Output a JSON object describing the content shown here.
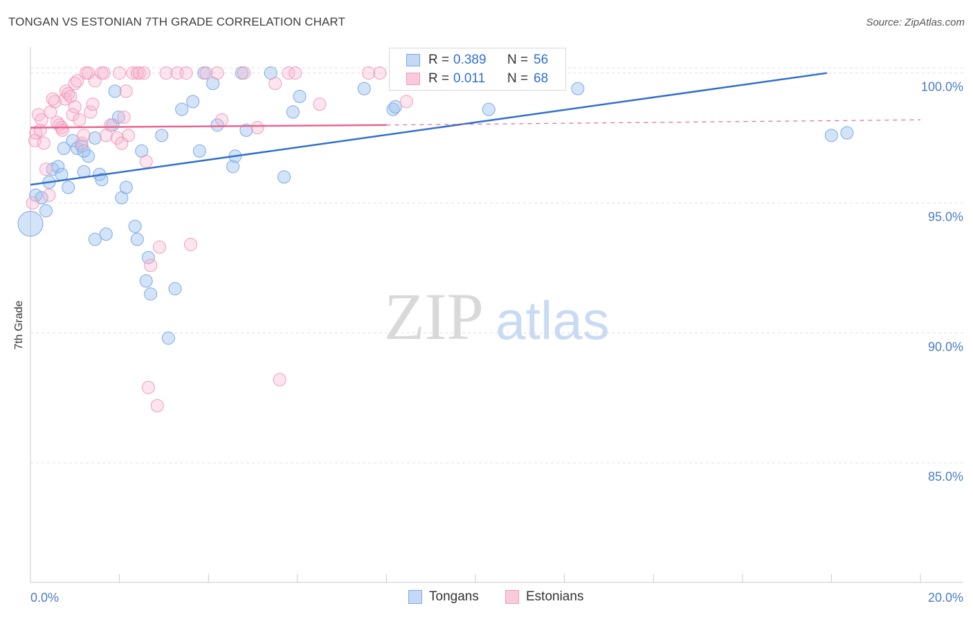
{
  "title": "TONGAN VS ESTONIAN 7TH GRADE CORRELATION CHART",
  "source": "Source: ZipAtlas.com",
  "watermark": {
    "zip": "ZIP",
    "atlas": "atlas"
  },
  "legend": {
    "rows": [
      {
        "r_label": "R =",
        "r_value": "0.389",
        "n_label": "N =",
        "n_value": "56"
      },
      {
        "r_label": "R =",
        "r_value": "0.011",
        "n_label": "N =",
        "n_value": "68"
      }
    ]
  },
  "bottom_legend": {
    "tongans": "Tongans",
    "estonians": "Estonians"
  },
  "chart_data": {
    "type": "scatter",
    "title": "TONGAN VS ESTONIAN 7TH GRADE CORRELATION CHART",
    "xlabel": "",
    "ylabel": "7th Grade",
    "xlim": [
      0.0,
      20.0
    ],
    "ylim": [
      80.4,
      101.0
    ],
    "x_tick_labels": [
      "0.0%",
      "20.0%"
    ],
    "y_ticks": [
      85.0,
      90.0,
      95.0,
      100.0
    ],
    "y_tick_labels": [
      "85.0%",
      "90.0%",
      "95.0%",
      "100.0%"
    ],
    "colors": {
      "tongans": "#7aa8e8",
      "tongans_line": "#2f6fcf",
      "estonians": "#f29ab8",
      "estonians_line": "#e8648f"
    },
    "series": [
      {
        "name": "Tongans",
        "R": 0.389,
        "N": 56,
        "trend": {
          "x0": 0.0,
          "y0": 95.7,
          "x1": 17.9,
          "y1": 100.0
        },
        "points": [
          [
            0.0,
            94.2
          ],
          [
            0.12,
            95.3
          ],
          [
            0.35,
            94.7
          ],
          [
            0.42,
            95.8
          ],
          [
            0.5,
            96.3
          ],
          [
            0.62,
            96.4
          ],
          [
            0.7,
            96.1
          ],
          [
            0.85,
            95.6
          ],
          [
            0.75,
            97.1
          ],
          [
            0.95,
            97.4
          ],
          [
            1.05,
            97.1
          ],
          [
            1.15,
            97.2
          ],
          [
            1.2,
            96.2
          ],
          [
            1.3,
            96.8
          ],
          [
            1.45,
            97.5
          ],
          [
            1.55,
            96.1
          ],
          [
            1.6,
            95.9
          ],
          [
            1.85,
            98.0
          ],
          [
            1.9,
            99.3
          ],
          [
            1.98,
            98.3
          ],
          [
            2.05,
            95.2
          ],
          [
            2.15,
            95.6
          ],
          [
            2.35,
            94.1
          ],
          [
            2.4,
            93.6
          ],
          [
            2.5,
            97.0
          ],
          [
            2.6,
            92.0
          ],
          [
            2.65,
            92.9
          ],
          [
            2.7,
            91.5
          ],
          [
            2.95,
            97.6
          ],
          [
            3.1,
            89.8
          ],
          [
            3.25,
            91.7
          ],
          [
            3.4,
            98.6
          ],
          [
            3.65,
            98.9
          ],
          [
            3.8,
            97.0
          ],
          [
            3.9,
            100.0
          ],
          [
            4.1,
            99.6
          ],
          [
            4.2,
            98.0
          ],
          [
            4.55,
            96.4
          ],
          [
            4.6,
            96.8
          ],
          [
            4.75,
            100.0
          ],
          [
            4.85,
            97.8
          ],
          [
            5.4,
            100.0
          ],
          [
            5.7,
            96.0
          ],
          [
            5.9,
            98.5
          ],
          [
            6.05,
            99.1
          ],
          [
            7.5,
            99.4
          ],
          [
            8.15,
            98.6
          ],
          [
            8.2,
            98.7
          ],
          [
            10.3,
            98.6
          ],
          [
            12.3,
            99.4
          ],
          [
            18.0,
            97.6
          ],
          [
            18.35,
            97.7
          ],
          [
            1.45,
            93.6
          ],
          [
            1.7,
            93.8
          ],
          [
            1.2,
            97.0
          ],
          [
            0.25,
            95.2
          ]
        ]
      },
      {
        "name": "Estonians",
        "R": 0.011,
        "N": 68,
        "trend": {
          "x0": 0.0,
          "y0": 97.9,
          "x1": 8.0,
          "y1": 98.0,
          "dash_to_x": 20.0,
          "dash_to_y": 98.2
        },
        "points": [
          [
            0.05,
            95.0
          ],
          [
            0.1,
            97.4
          ],
          [
            0.12,
            97.7
          ],
          [
            0.18,
            98.4
          ],
          [
            0.22,
            97.8
          ],
          [
            0.25,
            98.2
          ],
          [
            0.3,
            97.3
          ],
          [
            0.35,
            96.3
          ],
          [
            0.42,
            95.3
          ],
          [
            0.45,
            98.5
          ],
          [
            0.5,
            99.0
          ],
          [
            0.55,
            98.9
          ],
          [
            0.6,
            98.1
          ],
          [
            0.65,
            98.0
          ],
          [
            0.7,
            97.9
          ],
          [
            0.72,
            97.8
          ],
          [
            0.78,
            99.0
          ],
          [
            0.8,
            99.3
          ],
          [
            0.85,
            99.2
          ],
          [
            0.9,
            99.1
          ],
          [
            0.95,
            98.4
          ],
          [
            1.0,
            98.7
          ],
          [
            1.0,
            99.6
          ],
          [
            1.05,
            99.7
          ],
          [
            1.1,
            98.2
          ],
          [
            1.15,
            97.3
          ],
          [
            1.2,
            97.6
          ],
          [
            1.25,
            100.0
          ],
          [
            1.3,
            100.0
          ],
          [
            1.35,
            98.5
          ],
          [
            1.4,
            98.8
          ],
          [
            1.45,
            99.7
          ],
          [
            1.6,
            100.0
          ],
          [
            1.65,
            100.0
          ],
          [
            1.7,
            97.6
          ],
          [
            1.8,
            98.0
          ],
          [
            1.95,
            97.5
          ],
          [
            2.0,
            100.0
          ],
          [
            2.05,
            97.3
          ],
          [
            2.1,
            98.3
          ],
          [
            2.15,
            99.3
          ],
          [
            2.2,
            97.6
          ],
          [
            2.3,
            100.0
          ],
          [
            2.4,
            100.0
          ],
          [
            2.45,
            100.0
          ],
          [
            2.55,
            100.0
          ],
          [
            2.6,
            96.6
          ],
          [
            2.65,
            87.9
          ],
          [
            2.7,
            92.6
          ],
          [
            2.85,
            87.2
          ],
          [
            2.9,
            93.3
          ],
          [
            3.05,
            100.0
          ],
          [
            3.3,
            100.0
          ],
          [
            3.5,
            100.0
          ],
          [
            3.6,
            93.4
          ],
          [
            3.95,
            100.0
          ],
          [
            4.2,
            100.0
          ],
          [
            4.3,
            98.2
          ],
          [
            4.8,
            100.0
          ],
          [
            5.1,
            97.9
          ],
          [
            5.5,
            99.6
          ],
          [
            5.6,
            88.2
          ],
          [
            5.8,
            100.0
          ],
          [
            5.95,
            100.0
          ],
          [
            6.5,
            98.8
          ],
          [
            7.6,
            100.0
          ],
          [
            7.85,
            100.0
          ],
          [
            8.45,
            98.9
          ]
        ]
      }
    ]
  }
}
